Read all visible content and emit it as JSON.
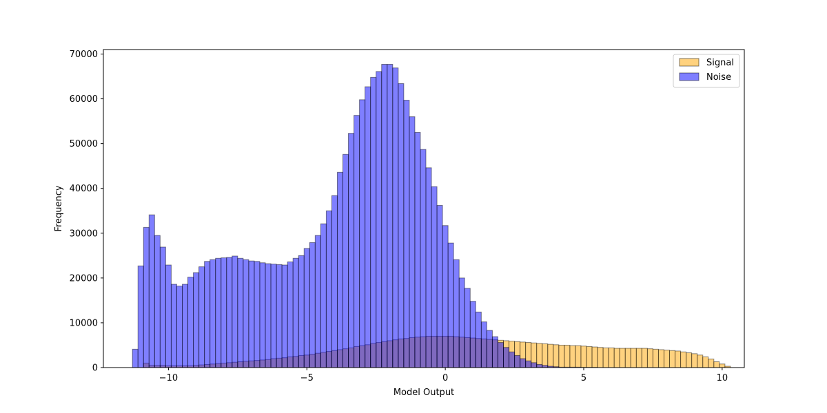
{
  "chart_data": {
    "type": "bar",
    "title": "",
    "xlabel": "Model Output",
    "ylabel": "Frequency",
    "xlim": [
      -12.35,
      10.8
    ],
    "ylim": [
      0,
      71000
    ],
    "bin_width": 0.2,
    "x_ticks": [
      -10,
      -5,
      0,
      5,
      10
    ],
    "x_tick_labels": [
      "−10",
      "−5",
      "0",
      "5",
      "10"
    ],
    "y_ticks": [
      0,
      10000,
      20000,
      30000,
      40000,
      50000,
      60000,
      70000
    ],
    "y_tick_labels": [
      "0",
      "10000",
      "20000",
      "30000",
      "40000",
      "50000",
      "60000",
      "70000"
    ],
    "grid": false,
    "legend_position": "top-right",
    "series": [
      {
        "name": "Signal",
        "color": "#ffa500",
        "bin_start": -11.3,
        "values": [
          0,
          0,
          1000,
          500,
          500,
          500,
          400,
          400,
          400,
          400,
          400,
          500,
          600,
          700,
          800,
          900,
          1000,
          1100,
          1200,
          1300,
          1400,
          1500,
          1600,
          1700,
          1800,
          2000,
          2100,
          2200,
          2400,
          2500,
          2700,
          2800,
          3000,
          3200,
          3400,
          3600,
          3800,
          4000,
          4200,
          4400,
          4700,
          4900,
          5100,
          5400,
          5600,
          5800,
          6000,
          6200,
          6400,
          6500,
          6700,
          6800,
          6900,
          7000,
          7000,
          7000,
          7000,
          7000,
          6900,
          6800,
          6700,
          6600,
          6500,
          6400,
          6300,
          6200,
          6100,
          6000,
          5900,
          5800,
          5700,
          5600,
          5500,
          5400,
          5300,
          5200,
          5100,
          5000,
          5000,
          4900,
          4900,
          4800,
          4700,
          4600,
          4500,
          4400,
          4400,
          4300,
          4300,
          4300,
          4300,
          4300,
          4300,
          4200,
          4100,
          4000,
          3900,
          3800,
          3700,
          3500,
          3300,
          3100,
          2800,
          2400,
          1900,
          1300,
          800,
          300
        ]
      },
      {
        "name": "Noise",
        "color": "#0000ff",
        "bin_start": -11.3,
        "values": [
          4100,
          22700,
          31300,
          34100,
          29500,
          26900,
          22900,
          18600,
          18200,
          18600,
          20200,
          21200,
          22500,
          23700,
          24100,
          24400,
          24500,
          24600,
          24900,
          24400,
          24100,
          23800,
          23700,
          23400,
          23200,
          23100,
          23000,
          22900,
          23600,
          24400,
          25000,
          26600,
          27900,
          29500,
          32100,
          35000,
          38400,
          43600,
          47600,
          52300,
          56300,
          59800,
          62700,
          64800,
          66100,
          67700,
          67700,
          66900,
          63400,
          59700,
          56000,
          52500,
          48700,
          44600,
          40400,
          36200,
          31700,
          27800,
          24100,
          20000,
          17700,
          14800,
          12400,
          10200,
          8300,
          6900,
          5600,
          4500,
          3500,
          2700,
          2000,
          1500,
          1100,
          700,
          500,
          300,
          200,
          100,
          100,
          100,
          100,
          50,
          50,
          50,
          0,
          0,
          0,
          0,
          0,
          0,
          0,
          0,
          0,
          0,
          0,
          0,
          0,
          0,
          0,
          0,
          0,
          0,
          0,
          0,
          0,
          0,
          0
        ]
      }
    ]
  }
}
